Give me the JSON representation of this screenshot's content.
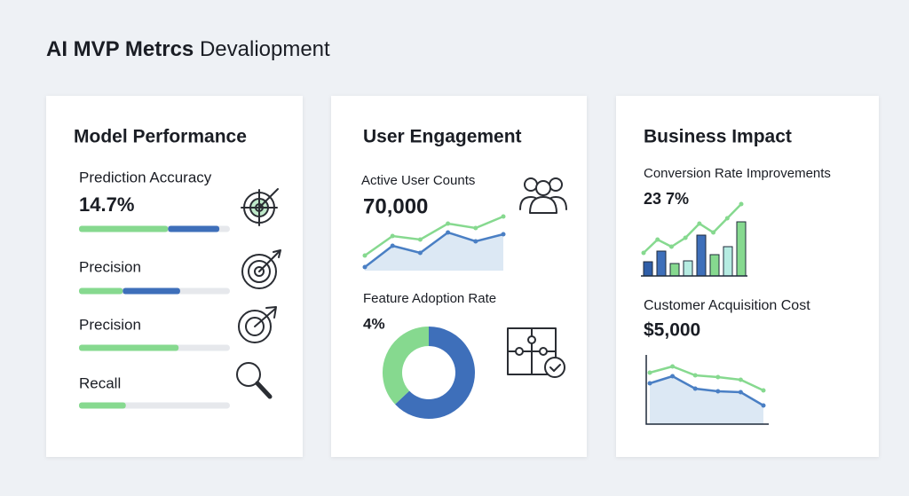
{
  "header": {
    "title_bold": "AI MVP Metrcs",
    "title_rest": "Devaliopment"
  },
  "cards": [
    {
      "title": "Model Performance",
      "track_max": 100,
      "metrics": [
        {
          "label": "Prediction Accuracy",
          "value": "14.7%",
          "bar": [
            {
              "color": "#86d98f",
              "value": 59
            },
            {
              "color": "#3e6fba",
              "value": 34
            }
          ]
        },
        {
          "label": "Precision",
          "bar": [
            {
              "color": "#86d98f",
              "value": 29
            },
            {
              "color": "#3e6fba",
              "value": 38
            }
          ]
        },
        {
          "label": "Precision",
          "bar": [
            {
              "color": "#86d98f",
              "value": 66
            }
          ]
        },
        {
          "label": "Recall",
          "bar": [
            {
              "color": "#86d98f",
              "value": 31
            }
          ]
        }
      ]
    },
    {
      "title": "User Engagement",
      "sections": [
        {
          "label": "Active User Counts",
          "value": "70,000",
          "chart": {
            "type": "line",
            "ylim": [
              0,
              70
            ],
            "area_color": "#dce8f4",
            "series": [
              {
                "color": "#86d98f",
                "values": [
                  17,
                  39,
                  35,
                  53,
                  48,
                  61
                ]
              },
              {
                "color": "#4a7fc4",
                "values": [
                  4,
                  28,
                  20,
                  43,
                  33,
                  41
                ]
              }
            ]
          }
        },
        {
          "label": "Feature Adoption Rate",
          "value": "4%",
          "chart": {
            "type": "donut",
            "values": [
              63,
              37
            ],
            "colors": [
              "#3e6fba",
              "#86d98f"
            ]
          }
        }
      ]
    },
    {
      "title": "Business Impact",
      "sections": [
        {
          "label": "Conversion Rate Improvements",
          "value": "23 7%",
          "chart": {
            "type": "bar-line",
            "ylim": [
              0,
              90
            ],
            "bars": [
              16,
              28,
              14,
              17,
              46,
              24,
              33,
              61
            ],
            "bar_colors": [
              "#2f5ea8",
              "#3e6fba",
              "#86d98f",
              "#b6ece2",
              "#3e6fba",
              "#86d98f",
              "#b6ece2",
              "#86d98f"
            ],
            "series": [
              {
                "color": "#86d98f",
                "values": [
                  26,
                  41,
                  33,
                  43,
                  59,
                  49,
                  65,
                  81
                ]
              }
            ]
          }
        },
        {
          "label": "Customer Acquisition Cost",
          "value": "$5,000",
          "chart": {
            "type": "line",
            "ylim": [
              0,
              80
            ],
            "area_color": "#dce8f4",
            "series": [
              {
                "color": "#86d98f",
                "values": [
                  58,
                  65,
                  55,
                  53,
                  50,
                  38
                ]
              },
              {
                "color": "#4a7fc4",
                "values": [
                  46,
                  54,
                  40,
                  37,
                  36,
                  21
                ]
              }
            ]
          }
        }
      ]
    }
  ]
}
